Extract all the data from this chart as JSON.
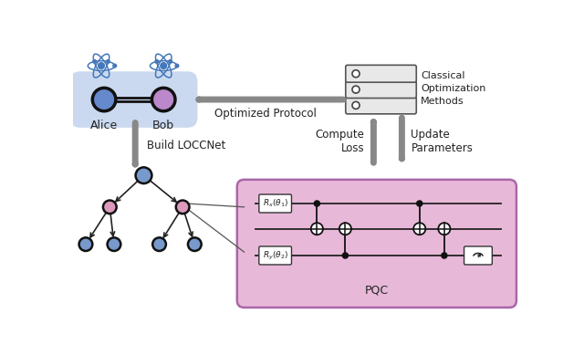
{
  "bg_color": "#ffffff",
  "alice_bob_bg": "#c5d5ee",
  "alice_color": "#6688cc",
  "bob_color": "#bb88cc",
  "tree_blue": "#7799cc",
  "tree_pink": "#dd99bb",
  "pqc_bg": "#e8b8d8",
  "pqc_border": "#aa66aa",
  "server_bg": "#e8e8e8",
  "server_border": "#555555",
  "arrow_color": "#888888",
  "text_color": "#222222",
  "title_text": "Classical\nOptimization\nMethods",
  "pqc_label": "PQC",
  "alice_label": "Alice",
  "bob_label": "Bob",
  "optimized_label": "Optimized Protocol",
  "build_label": "Build LOCCNet",
  "compute_label": "Compute\nLoss",
  "update_label": "Update\nParameters",
  "rx_label": "$R_x(\\theta_1)$",
  "ry_label": "$R_y(\\theta_2)$"
}
